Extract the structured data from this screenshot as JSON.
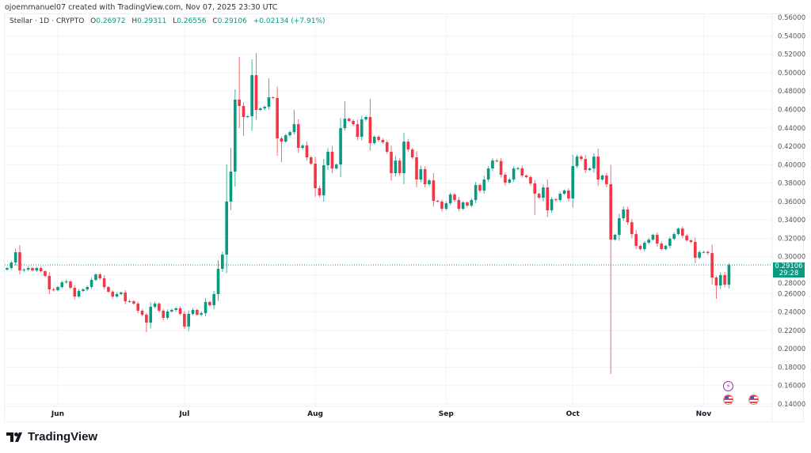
{
  "credit": "ojoemmanuel07 created with TradingView.com, Nov 07, 2025 23:30 UTC",
  "legend": {
    "symbol": "Stellar · 1D · CRYPTO",
    "o_label": "O",
    "o": "0.26972",
    "h_label": "H",
    "h": "0.29311",
    "l_label": "L",
    "l": "0.26556",
    "c_label": "C",
    "c": "0.29106",
    "change": "+0.02134 (+7.91%)"
  },
  "price_label": {
    "price": "0.29106",
    "countdown": "29:28"
  },
  "brand": "TradingView",
  "colors": {
    "up": "#089981",
    "down": "#F23645",
    "grid": "#f0f3fa",
    "axis_text": "#555555"
  },
  "events": [
    {
      "icon": "lightning-icon",
      "date": "Nov 6"
    },
    {
      "icon": "us-flag-icon",
      "date": "Nov 6"
    },
    {
      "icon": "us-flag-icon",
      "date": "Nov 12"
    }
  ],
  "chart_data": {
    "type": "candlestick",
    "interval": "1D",
    "start_date": "2025-05-20",
    "end_date": "2025-11-07",
    "ylim": [
      0.13,
      0.57
    ],
    "y_ticks": [
      "0.56000",
      "0.54000",
      "0.52000",
      "0.50000",
      "0.48000",
      "0.46000",
      "0.44000",
      "0.42000",
      "0.40000",
      "0.38000",
      "0.36000",
      "0.34000",
      "0.32000",
      "0.30000",
      "0.28000",
      "0.26000",
      "0.24000",
      "0.22000",
      "0.20000",
      "0.18000",
      "0.16000",
      "0.14000"
    ],
    "x_ticks": [
      {
        "label": "Jun",
        "index": 12
      },
      {
        "label": "Jul",
        "index": 42
      },
      {
        "label": "Aug",
        "index": 73
      },
      {
        "label": "Sep",
        "index": 104
      },
      {
        "label": "Oct",
        "index": 134
      },
      {
        "label": "Nov",
        "index": 165
      }
    ],
    "grid": true,
    "last_price": 0.29106,
    "first_open": 0.286,
    "close": [
      0.2877,
      0.2937,
      0.3049,
      0.2851,
      0.286,
      0.2877,
      0.2851,
      0.2877,
      0.2843,
      0.2791,
      0.2645,
      0.2636,
      0.2671,
      0.2722,
      0.2731,
      0.2662,
      0.2568,
      0.2628,
      0.2645,
      0.2671,
      0.2748,
      0.2808,
      0.2765,
      0.2671,
      0.2619,
      0.2568,
      0.2594,
      0.2611,
      0.2516,
      0.2516,
      0.249,
      0.2413,
      0.237,
      0.2284,
      0.2456,
      0.249,
      0.2413,
      0.2336,
      0.2405,
      0.2422,
      0.2439,
      0.2379,
      0.2241,
      0.2379,
      0.2422,
      0.237,
      0.2387,
      0.2508,
      0.2473,
      0.2594,
      0.2868,
      0.3023,
      0.3599,
      0.3925,
      0.4707,
      0.4638,
      0.4518,
      0.4526,
      0.4973,
      0.4595,
      0.4612,
      0.4629,
      0.4732,
      0.4725,
      0.4286,
      0.4251,
      0.432,
      0.4354,
      0.444,
      0.4183,
      0.4208,
      0.408,
      0.4011,
      0.3745,
      0.3667,
      0.3994,
      0.414,
      0.3959,
      0.4002,
      0.4397,
      0.45,
      0.4475,
      0.444,
      0.4303,
      0.4492,
      0.4518,
      0.4234,
      0.4303,
      0.4269,
      0.4243,
      0.414,
      0.3908,
      0.4045,
      0.3908,
      0.4251,
      0.4165,
      0.408,
      0.3839,
      0.3951,
      0.3788,
      0.383,
      0.3607,
      0.3599,
      0.3521,
      0.3581,
      0.3676,
      0.3616,
      0.3521,
      0.359,
      0.3556,
      0.3616,
      0.3779,
      0.3719,
      0.3839,
      0.3959,
      0.4045,
      0.404,
      0.3891,
      0.3805,
      0.3839,
      0.3959,
      0.3962,
      0.3882,
      0.3865,
      0.3796,
      0.3684,
      0.3641,
      0.3753,
      0.3504,
      0.3624,
      0.3616,
      0.3684,
      0.3719,
      0.3633,
      0.3985,
      0.4088,
      0.4062,
      0.3942,
      0.3959,
      0.4088,
      0.3839,
      0.3882,
      0.3788,
      0.3186,
      0.3238,
      0.3418,
      0.3513,
      0.3375,
      0.3246,
      0.3118,
      0.3083,
      0.3152,
      0.3186,
      0.3238,
      0.3143,
      0.3083,
      0.3118,
      0.3195,
      0.3246,
      0.3306,
      0.3229,
      0.3178,
      0.316,
      0.2989,
      0.3049,
      0.3052,
      0.304,
      0.2774,
      0.2688,
      0.28,
      0.26972,
      0.29106
    ],
    "wick_extremes": {
      "3": {
        "high": 0.3126
      },
      "33": {
        "low": 0.2181
      },
      "42": {
        "low": 0.2216
      },
      "52": {
        "high": 0.4002
      },
      "53": {
        "high": 0.4183
      },
      "54": {
        "high": 0.4818
      },
      "55": {
        "high": 0.5171,
        "low": 0.4397
      },
      "56": {
        "low": 0.4311
      },
      "58": {
        "high": 0.5145
      },
      "59": {
        "high": 0.5213
      },
      "62": {
        "high": 0.4939
      },
      "64": {
        "low": 0.4097
      },
      "65": {
        "low": 0.4028
      },
      "68": {
        "high": 0.4595
      },
      "80": {
        "high": 0.4689
      },
      "86": {
        "high": 0.4715
      },
      "125": {
        "low": 0.3453
      },
      "143": {
        "low": 0.1726
      },
      "168": {
        "low": 0.2542
      },
      "171": {
        "high": 0.29311,
        "low": 0.26556
      }
    }
  }
}
